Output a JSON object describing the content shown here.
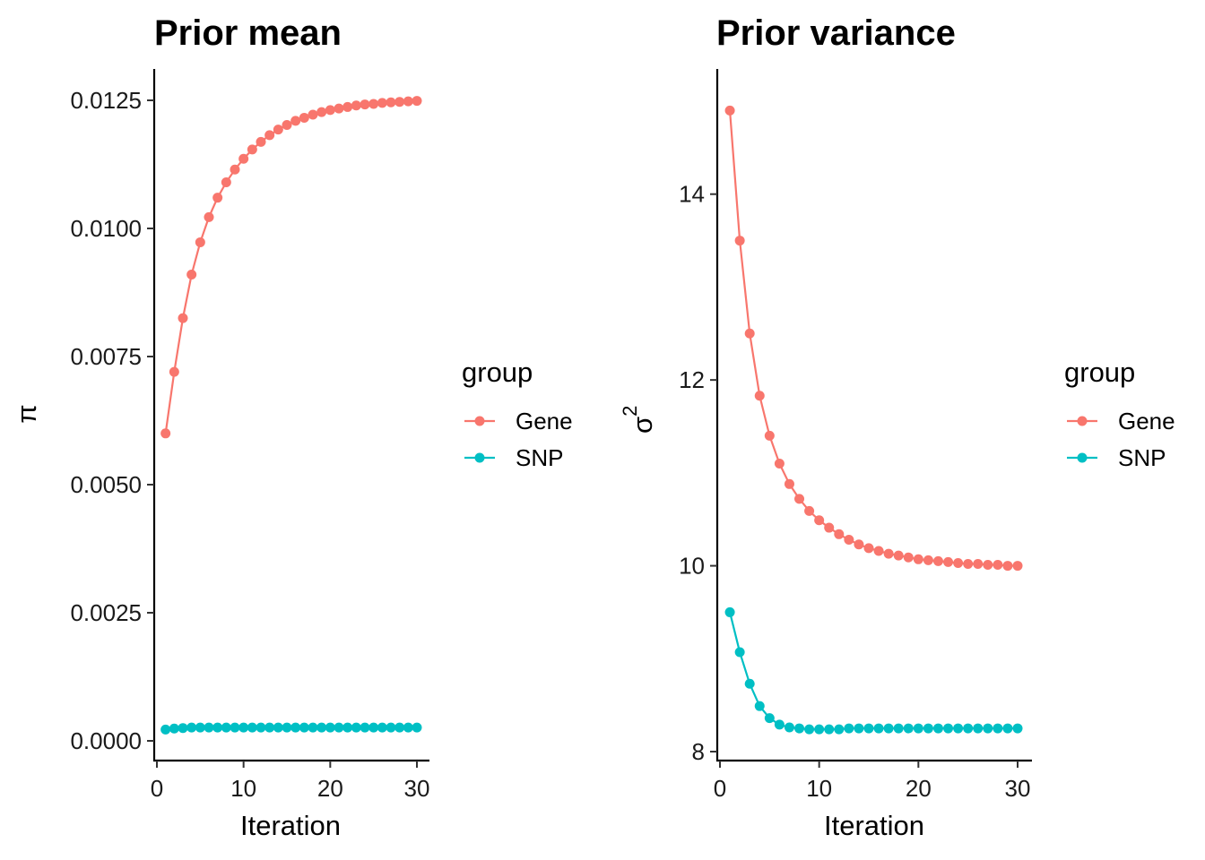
{
  "chart_data": [
    {
      "type": "line",
      "title": "Prior mean",
      "xlabel": "Iteration",
      "ylabel": "π",
      "xlim": [
        0,
        30
      ],
      "ylim": [
        0,
        0.0125
      ],
      "x_ticks": [
        0,
        10,
        20,
        30
      ],
      "x_tick_labels": [
        "0",
        "10",
        "20",
        "30"
      ],
      "y_ticks": [
        0,
        0.0025,
        0.005,
        0.0075,
        0.01,
        0.0125
      ],
      "y_tick_labels": [
        "0.0000",
        "0.0025",
        "0.0050",
        "0.0075",
        "0.0100",
        "0.0125"
      ],
      "x": [
        1,
        2,
        3,
        4,
        5,
        6,
        7,
        8,
        9,
        10,
        11,
        12,
        13,
        14,
        15,
        16,
        17,
        18,
        19,
        20,
        21,
        22,
        23,
        24,
        25,
        26,
        27,
        28,
        29,
        30
      ],
      "series": [
        {
          "name": "Gene",
          "color": "#F8766D",
          "values": [
            0.006,
            0.0072,
            0.00825,
            0.0091,
            0.00973,
            0.01022,
            0.0106,
            0.0109,
            0.01115,
            0.01136,
            0.01154,
            0.01169,
            0.01182,
            0.01193,
            0.01202,
            0.0121,
            0.01216,
            0.01222,
            0.01227,
            0.01231,
            0.01234,
            0.01237,
            0.0124,
            0.01242,
            0.01243,
            0.01245,
            0.01246,
            0.01247,
            0.01248,
            0.01249
          ]
        },
        {
          "name": "SNP",
          "color": "#00BFC4",
          "values": [
            0.00022,
            0.00024,
            0.00025,
            0.00026,
            0.00026,
            0.00026,
            0.00026,
            0.00026,
            0.00026,
            0.00026,
            0.00026,
            0.00026,
            0.00026,
            0.00026,
            0.00026,
            0.00026,
            0.00026,
            0.00026,
            0.00026,
            0.00026,
            0.00026,
            0.00026,
            0.00026,
            0.00026,
            0.00026,
            0.00026,
            0.00026,
            0.00026,
            0.00026,
            0.00026
          ]
        }
      ],
      "legend": {
        "title": "group",
        "entries": [
          "Gene",
          "SNP"
        ],
        "position": "right"
      }
    },
    {
      "type": "line",
      "title": "Prior variance",
      "xlabel": "Iteration",
      "ylabel": "σ",
      "ylabel_superscript": "2",
      "xlim": [
        0,
        30
      ],
      "ylim": [
        8,
        15
      ],
      "x_ticks": [
        0,
        10,
        20,
        30
      ],
      "x_tick_labels": [
        "0",
        "10",
        "20",
        "30"
      ],
      "y_ticks": [
        8,
        10,
        12,
        14
      ],
      "y_tick_labels": [
        "8",
        "10",
        "12",
        "14"
      ],
      "x": [
        1,
        2,
        3,
        4,
        5,
        6,
        7,
        8,
        9,
        10,
        11,
        12,
        13,
        14,
        15,
        16,
        17,
        18,
        19,
        20,
        21,
        22,
        23,
        24,
        25,
        26,
        27,
        28,
        29,
        30
      ],
      "series": [
        {
          "name": "Gene",
          "color": "#F8766D",
          "values": [
            14.9,
            13.5,
            12.5,
            11.83,
            11.4,
            11.1,
            10.88,
            10.72,
            10.59,
            10.49,
            10.41,
            10.34,
            10.28,
            10.23,
            10.19,
            10.16,
            10.13,
            10.11,
            10.09,
            10.07,
            10.06,
            10.05,
            10.04,
            10.03,
            10.02,
            10.02,
            10.01,
            10.01,
            10.0,
            10.0
          ]
        },
        {
          "name": "SNP",
          "color": "#00BFC4",
          "values": [
            9.5,
            9.07,
            8.73,
            8.49,
            8.36,
            8.29,
            8.26,
            8.25,
            8.24,
            8.24,
            8.24,
            8.24,
            8.25,
            8.25,
            8.25,
            8.25,
            8.25,
            8.25,
            8.25,
            8.25,
            8.25,
            8.25,
            8.25,
            8.25,
            8.25,
            8.25,
            8.25,
            8.25,
            8.25,
            8.25
          ]
        }
      ],
      "legend": {
        "title": "group",
        "entries": [
          "Gene",
          "SNP"
        ],
        "position": "right"
      }
    }
  ]
}
